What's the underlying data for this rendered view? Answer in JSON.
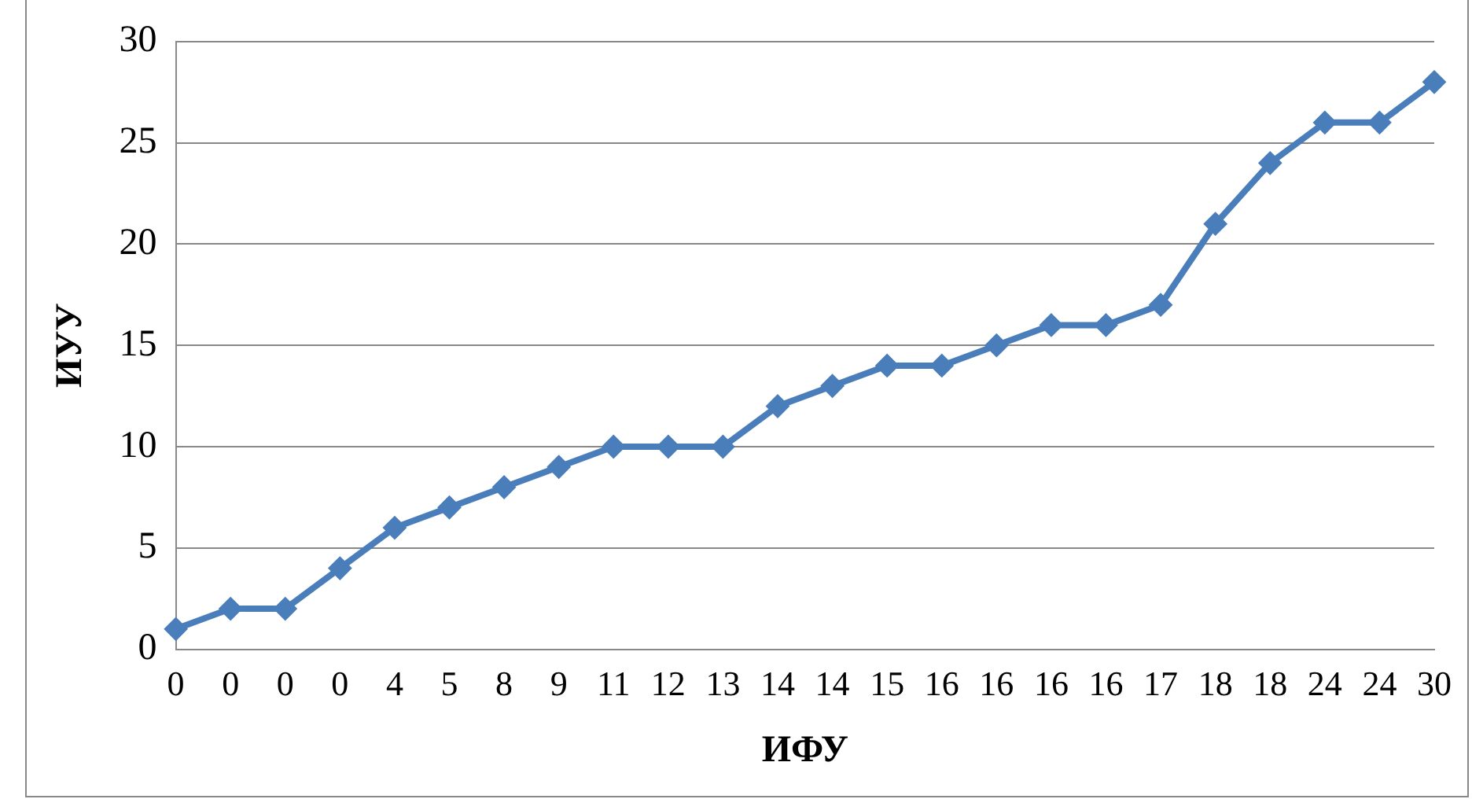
{
  "chart_data": {
    "type": "line",
    "xlabel": "ИФУ",
    "ylabel": "ИУУ",
    "categories": [
      "0",
      "0",
      "0",
      "0",
      "4",
      "5",
      "8",
      "9",
      "11",
      "12",
      "13",
      "14",
      "14",
      "15",
      "16",
      "16",
      "16",
      "16",
      "17",
      "18",
      "18",
      "24",
      "24",
      "30"
    ],
    "series": [
      {
        "color": "#4a7ebb",
        "values": [
          1,
          2,
          2,
          4,
          6,
          7,
          8,
          9,
          10,
          10,
          10,
          12,
          13,
          14,
          14,
          15,
          16,
          16,
          17,
          21,
          24,
          26,
          26,
          28
        ]
      }
    ],
    "ylim": [
      0,
      30
    ],
    "yticks": [
      0,
      5,
      10,
      15,
      20,
      25,
      30
    ],
    "grid": "y",
    "legend": false,
    "marker": "diamond",
    "line_style": "solid"
  }
}
